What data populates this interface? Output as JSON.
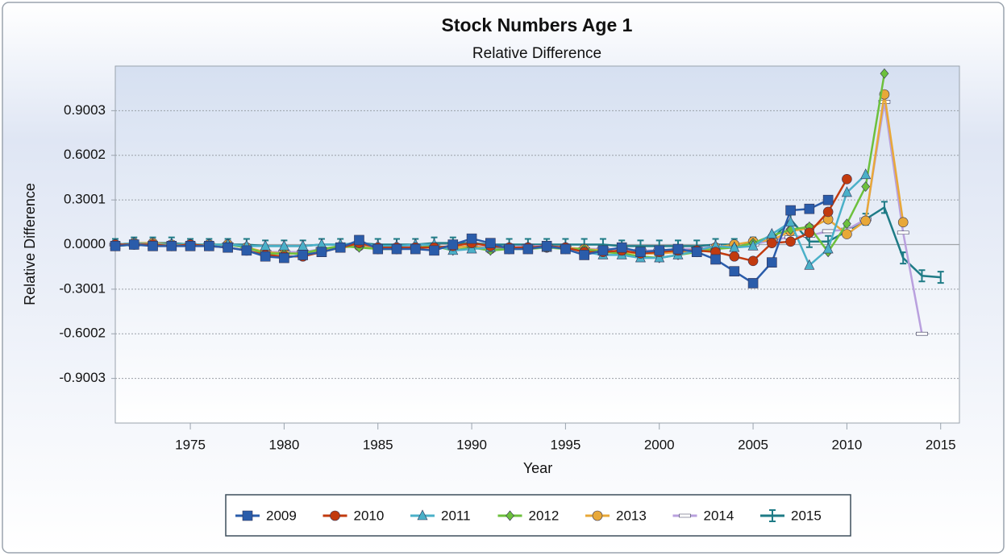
{
  "chart_data": {
    "type": "line",
    "title": "Stock Numbers Age 1",
    "subtitle": "Relative Difference",
    "x_label": "Year",
    "y_label": "Relative Difference",
    "x": [
      1971,
      1972,
      1973,
      1974,
      1975,
      1976,
      1977,
      1978,
      1979,
      1980,
      1981,
      1982,
      1983,
      1984,
      1985,
      1986,
      1987,
      1988,
      1989,
      1990,
      1991,
      1992,
      1993,
      1994,
      1995,
      1996,
      1997,
      1998,
      1999,
      2000,
      2001,
      2002,
      2003,
      2004,
      2005,
      2006,
      2007,
      2008,
      2009,
      2010,
      2011,
      2012,
      2013,
      2014,
      2015
    ],
    "xlim": [
      1971,
      2016
    ],
    "xticks": [
      1975,
      1980,
      1985,
      1990,
      1995,
      2000,
      2005,
      2010,
      2015
    ],
    "ylim": [
      -1.2004,
      1.2004
    ],
    "yticks": [
      -0.9003,
      -0.6002,
      -0.3001,
      {
        "value": 0,
        "label": "0.0000"
      },
      0.3001,
      0.6002,
      0.9003
    ],
    "grid": true,
    "legend": "bottom",
    "series": [
      {
        "name": "2009",
        "color": "#2a5caa",
        "marker": "square",
        "values": [
          -0.01,
          0,
          -0.01,
          -0.01,
          -0.01,
          -0.01,
          -0.02,
          -0.04,
          -0.08,
          -0.09,
          -0.07,
          -0.05,
          -0.02,
          0.03,
          -0.03,
          -0.03,
          -0.03,
          -0.04,
          0,
          0.04,
          0.01,
          -0.03,
          -0.03,
          -0.01,
          -0.03,
          -0.07,
          -0.04,
          -0.02,
          -0.05,
          -0.04,
          -0.03,
          -0.05,
          -0.1,
          -0.18,
          -0.26,
          -0.12,
          0.23,
          0.24,
          0.3,
          null,
          null,
          null,
          null,
          null,
          null
        ]
      },
      {
        "name": "2010",
        "color": "#c23a0e",
        "marker": "circle",
        "values": [
          0,
          0,
          0,
          -0.01,
          0,
          -0.01,
          -0.02,
          -0.04,
          -0.07,
          -0.08,
          -0.08,
          -0.05,
          -0.02,
          0.01,
          -0.02,
          -0.02,
          -0.02,
          -0.02,
          -0.01,
          0.01,
          -0.01,
          -0.02,
          -0.02,
          -0.01,
          -0.02,
          -0.05,
          -0.05,
          -0.04,
          -0.06,
          -0.05,
          -0.04,
          -0.04,
          -0.05,
          -0.08,
          -0.11,
          0.01,
          0.02,
          0.08,
          0.22,
          0.44,
          null,
          null,
          null,
          null,
          null
        ]
      },
      {
        "name": "2011",
        "color": "#4ab0c8",
        "marker": "triangle",
        "values": [
          0,
          0.01,
          0,
          0,
          0,
          0,
          0,
          -0.01,
          -0.01,
          -0.01,
          -0.01,
          0,
          0,
          0.01,
          -0.01,
          -0.01,
          0,
          0,
          -0.04,
          -0.03,
          -0.02,
          -0.02,
          -0.02,
          -0.02,
          -0.02,
          -0.05,
          -0.07,
          -0.07,
          -0.09,
          -0.09,
          -0.07,
          -0.04,
          -0.01,
          -0.02,
          -0.01,
          0.07,
          0.15,
          -0.14,
          -0.03,
          0.35,
          0.47,
          null,
          null,
          null,
          null
        ]
      },
      {
        "name": "2012",
        "color": "#6cc03c",
        "marker": "diamond",
        "values": [
          -0.01,
          0,
          0,
          0,
          0,
          0,
          0,
          -0.02,
          -0.06,
          -0.06,
          -0.06,
          -0.03,
          -0.01,
          -0.02,
          -0.03,
          -0.03,
          -0.02,
          -0.01,
          -0.04,
          -0.02,
          -0.04,
          -0.03,
          -0.03,
          -0.02,
          -0.03,
          -0.03,
          -0.05,
          -0.06,
          -0.08,
          -0.09,
          -0.07,
          -0.05,
          -0.03,
          -0.02,
          0.01,
          0.06,
          0.1,
          0.12,
          -0.05,
          0.14,
          0.39,
          1.15,
          null,
          null,
          null
        ]
      },
      {
        "name": "2013",
        "color": "#e8a838",
        "marker": "circle",
        "values": [
          0,
          0.01,
          0.01,
          0,
          0,
          0,
          0,
          -0.02,
          -0.05,
          -0.06,
          -0.06,
          -0.04,
          -0.02,
          -0.01,
          -0.03,
          -0.03,
          -0.02,
          -0.02,
          -0.02,
          -0.01,
          -0.03,
          -0.03,
          -0.02,
          -0.02,
          -0.02,
          -0.03,
          -0.04,
          -0.05,
          -0.06,
          -0.06,
          -0.05,
          -0.04,
          -0.02,
          0,
          0.02,
          0.03,
          0.09,
          0.11,
          0.17,
          0.07,
          0.16,
          1.01,
          0.15,
          null,
          null
        ]
      },
      {
        "name": "2014",
        "color": "#b9a0de",
        "marker": "dash",
        "values": [
          0,
          0,
          0,
          0,
          0,
          0,
          0,
          -0.02,
          -0.05,
          -0.05,
          -0.05,
          -0.03,
          -0.01,
          0,
          -0.02,
          -0.02,
          -0.01,
          -0.01,
          -0.02,
          -0.01,
          -0.02,
          -0.02,
          -0.01,
          -0.01,
          -0.02,
          -0.03,
          -0.03,
          -0.03,
          -0.04,
          -0.04,
          -0.03,
          -0.03,
          -0.01,
          -0.01,
          0,
          0.03,
          0.05,
          0.06,
          0.09,
          0.1,
          0.17,
          0.96,
          0.08,
          -0.6,
          null
        ]
      },
      {
        "name": "2015",
        "color": "#1e7b86",
        "marker": "ibar",
        "values": [
          0,
          0.01,
          0.01,
          0.01,
          0,
          0,
          0,
          0,
          -0.01,
          -0.01,
          -0.01,
          0,
          0,
          0.01,
          0,
          0,
          0,
          0.01,
          0.01,
          0.01,
          0,
          0,
          0,
          0,
          0,
          0,
          0,
          -0.01,
          -0.01,
          -0.01,
          -0.01,
          -0.01,
          0,
          0,
          0.01,
          0.03,
          0.17,
          0.02,
          0.02,
          0.09,
          0.17,
          0.25,
          -0.09,
          -0.21,
          -0.22
        ]
      }
    ]
  }
}
